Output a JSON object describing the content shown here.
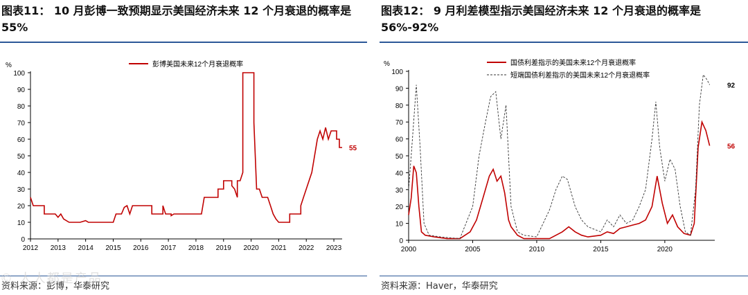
{
  "left": {
    "title": "图表11： 10 月彭博一致预期显示美国经济未来 12 个月衰退的概率是 55%",
    "source": "资料来源：彭博，华泰研究",
    "watermark": "© 人人都是产品",
    "chart_data": {
      "type": "line",
      "unit_label": "%",
      "x_ticks": [
        "2012",
        "2013",
        "2014",
        "2015",
        "2016",
        "2017",
        "2018",
        "2019",
        "2020",
        "2021",
        "2022",
        "2023"
      ],
      "y_ticks": [
        0,
        10,
        20,
        30,
        40,
        50,
        60,
        70,
        80,
        90,
        100
      ],
      "xlim": [
        2012,
        2023.3
      ],
      "ylim": [
        0,
        100
      ],
      "end_label": "55",
      "series": [
        {
          "name": "彭博美国未来12个月衰退概率",
          "color": "#c00000",
          "points": [
            [
              2012.0,
              25
            ],
            [
              2012.1,
              20
            ],
            [
              2012.5,
              20
            ],
            [
              2012.5,
              15
            ],
            [
              2012.9,
              15
            ],
            [
              2013.0,
              13
            ],
            [
              2013.1,
              15
            ],
            [
              2013.2,
              12
            ],
            [
              2013.4,
              10
            ],
            [
              2013.8,
              10
            ],
            [
              2014.0,
              11
            ],
            [
              2014.1,
              10
            ],
            [
              2015.0,
              10
            ],
            [
              2015.1,
              15
            ],
            [
              2015.3,
              15
            ],
            [
              2015.4,
              19
            ],
            [
              2015.5,
              20
            ],
            [
              2015.6,
              15
            ],
            [
              2015.7,
              20
            ],
            [
              2016.4,
              20
            ],
            [
              2016.4,
              15
            ],
            [
              2016.8,
              15
            ],
            [
              2016.8,
              20
            ],
            [
              2016.9,
              15
            ],
            [
              2017.1,
              15
            ],
            [
              2017.1,
              14
            ],
            [
              2017.2,
              15
            ],
            [
              2018.0,
              15
            ],
            [
              2018.2,
              15
            ],
            [
              2018.3,
              25
            ],
            [
              2018.8,
              25
            ],
            [
              2018.8,
              30
            ],
            [
              2019.0,
              30
            ],
            [
              2019.0,
              35
            ],
            [
              2019.3,
              35
            ],
            [
              2019.3,
              32
            ],
            [
              2019.4,
              30
            ],
            [
              2019.5,
              25
            ],
            [
              2019.5,
              35
            ],
            [
              2019.6,
              35
            ],
            [
              2019.7,
              40
            ],
            [
              2019.7,
              100
            ],
            [
              2020.1,
              100
            ],
            [
              2020.1,
              70
            ],
            [
              2020.2,
              30
            ],
            [
              2020.3,
              30
            ],
            [
              2020.4,
              25
            ],
            [
              2020.6,
              25
            ],
            [
              2020.7,
              20
            ],
            [
              2020.8,
              15
            ],
            [
              2020.9,
              12
            ],
            [
              2021.0,
              10
            ],
            [
              2021.4,
              10
            ],
            [
              2021.4,
              15
            ],
            [
              2021.8,
              15
            ],
            [
              2021.8,
              20
            ],
            [
              2021.9,
              25
            ],
            [
              2022.0,
              30
            ],
            [
              2022.1,
              35
            ],
            [
              2022.2,
              40
            ],
            [
              2022.3,
              50
            ],
            [
              2022.4,
              60
            ],
            [
              2022.5,
              65
            ],
            [
              2022.6,
              60
            ],
            [
              2022.7,
              67
            ],
            [
              2022.8,
              60
            ],
            [
              2022.9,
              65
            ],
            [
              2023.1,
              65
            ],
            [
              2023.1,
              60
            ],
            [
              2023.2,
              60
            ],
            [
              2023.2,
              55
            ],
            [
              2023.3,
              55
            ]
          ]
        }
      ],
      "legend": "top-center"
    }
  },
  "right": {
    "title": "图表12： 9 月利差模型指示美国经济未来 12 个月衰退的概率是 56%-92%",
    "source": "资料来源：Haver，华泰研究",
    "chart_data": {
      "type": "line",
      "unit_label": "%",
      "x_ticks": [
        "2000",
        "2005",
        "2010",
        "2015",
        "2020"
      ],
      "y_ticks": [
        0,
        10,
        20,
        30,
        40,
        50,
        60,
        70,
        80,
        90,
        100
      ],
      "xlim": [
        2000,
        2023.9
      ],
      "ylim": [
        0,
        100
      ],
      "end_labels": [
        "92",
        "56"
      ],
      "legend": "top-center",
      "series": [
        {
          "name": "国债利差指示的美国未来12个月衰退概率",
          "color": "#c00000",
          "dash": false,
          "points": [
            [
              2000.0,
              15
            ],
            [
              2000.2,
              25
            ],
            [
              2000.4,
              44
            ],
            [
              2000.6,
              40
            ],
            [
              2000.8,
              20
            ],
            [
              2001.0,
              5
            ],
            [
              2001.3,
              3
            ],
            [
              2002.0,
              2
            ],
            [
              2003.0,
              1
            ],
            [
              2004.0,
              1
            ],
            [
              2004.8,
              5
            ],
            [
              2005.3,
              12
            ],
            [
              2005.8,
              25
            ],
            [
              2006.3,
              38
            ],
            [
              2006.6,
              42
            ],
            [
              2006.9,
              35
            ],
            [
              2007.2,
              38
            ],
            [
              2007.5,
              28
            ],
            [
              2007.8,
              12
            ],
            [
              2008.0,
              8
            ],
            [
              2008.5,
              3
            ],
            [
              2009.0,
              1
            ],
            [
              2010.0,
              1
            ],
            [
              2011.0,
              1
            ],
            [
              2011.5,
              3
            ],
            [
              2012.0,
              5
            ],
            [
              2012.5,
              8
            ],
            [
              2013.0,
              5
            ],
            [
              2013.5,
              3
            ],
            [
              2014.0,
              2
            ],
            [
              2015.0,
              3
            ],
            [
              2015.5,
              5
            ],
            [
              2016.0,
              4
            ],
            [
              2016.5,
              7
            ],
            [
              2017.0,
              8
            ],
            [
              2017.5,
              9
            ],
            [
              2018.0,
              10
            ],
            [
              2018.5,
              12
            ],
            [
              2019.0,
              20
            ],
            [
              2019.4,
              38
            ],
            [
              2019.6,
              30
            ],
            [
              2019.8,
              22
            ],
            [
              2020.2,
              10
            ],
            [
              2020.6,
              15
            ],
            [
              2021.0,
              8
            ],
            [
              2021.5,
              4
            ],
            [
              2022.0,
              3
            ],
            [
              2022.3,
              10
            ],
            [
              2022.6,
              55
            ],
            [
              2022.9,
              70
            ],
            [
              2023.2,
              65
            ],
            [
              2023.5,
              56
            ]
          ]
        },
        {
          "name": "短端国债利差指示的美国未来12个月衰退概率",
          "color": "#333333",
          "dash": true,
          "points": [
            [
              2000.0,
              30
            ],
            [
              2000.3,
              60
            ],
            [
              2000.6,
              92
            ],
            [
              2000.9,
              55
            ],
            [
              2001.2,
              10
            ],
            [
              2001.6,
              3
            ],
            [
              2002.5,
              2
            ],
            [
              2004.0,
              1
            ],
            [
              2005.0,
              20
            ],
            [
              2005.5,
              50
            ],
            [
              2006.0,
              70
            ],
            [
              2006.4,
              85
            ],
            [
              2006.8,
              88
            ],
            [
              2007.2,
              60
            ],
            [
              2007.6,
              80
            ],
            [
              2008.0,
              20
            ],
            [
              2008.5,
              5
            ],
            [
              2009.0,
              3
            ],
            [
              2010.0,
              2
            ],
            [
              2011.0,
              18
            ],
            [
              2011.5,
              30
            ],
            [
              2012.0,
              38
            ],
            [
              2012.4,
              36
            ],
            [
              2013.0,
              20
            ],
            [
              2013.5,
              12
            ],
            [
              2014.0,
              8
            ],
            [
              2015.0,
              5
            ],
            [
              2015.5,
              12
            ],
            [
              2016.0,
              8
            ],
            [
              2016.5,
              15
            ],
            [
              2017.0,
              10
            ],
            [
              2017.5,
              12
            ],
            [
              2018.0,
              20
            ],
            [
              2018.5,
              30
            ],
            [
              2019.0,
              60
            ],
            [
              2019.3,
              82
            ],
            [
              2019.6,
              55
            ],
            [
              2020.0,
              35
            ],
            [
              2020.4,
              48
            ],
            [
              2020.8,
              42
            ],
            [
              2021.2,
              20
            ],
            [
              2021.6,
              5
            ],
            [
              2022.0,
              3
            ],
            [
              2022.4,
              30
            ],
            [
              2022.7,
              80
            ],
            [
              2023.0,
              98
            ],
            [
              2023.3,
              95
            ],
            [
              2023.5,
              92
            ]
          ]
        }
      ]
    }
  }
}
